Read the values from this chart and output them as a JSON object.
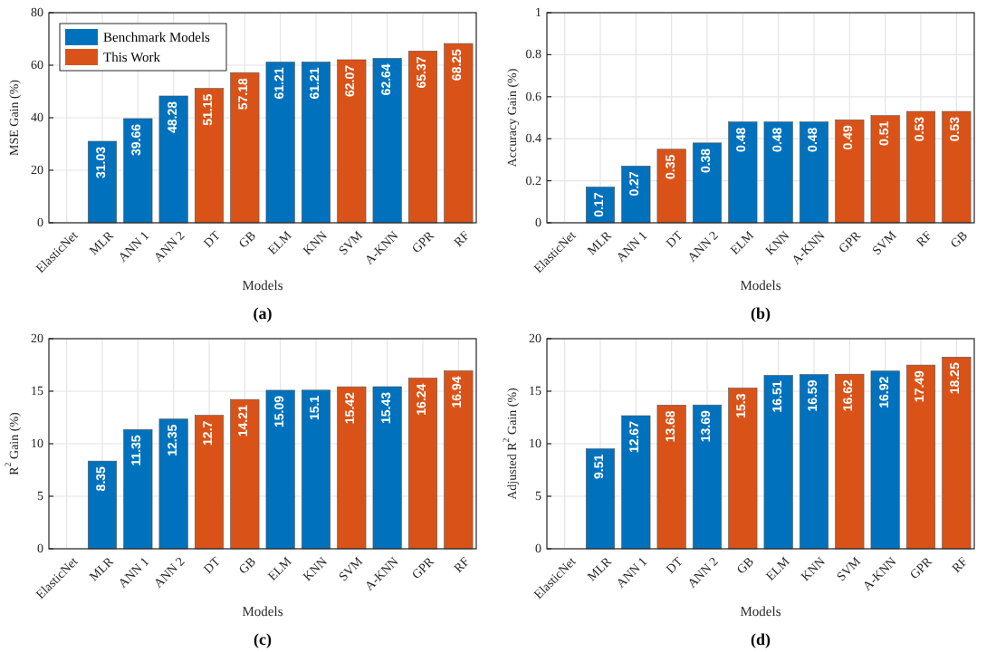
{
  "chart_data": [
    {
      "type": "bar",
      "title": "(a)",
      "xlabel": "Models",
      "ylabel": "MSE Gain (%)",
      "categories": [
        "ElasticNet",
        "MLR",
        "ANN 1",
        "ANN 2",
        "DT",
        "GB",
        "ELM",
        "KNN",
        "SVM",
        "A-KNN",
        "GPR",
        "RF"
      ],
      "stacked": true,
      "series": [
        {
          "name": "Benchmark Models",
          "color": "#0072bd",
          "values": [
            null,
            31.03,
            39.66,
            48.28,
            null,
            null,
            61.21,
            61.21,
            null,
            62.64,
            null,
            null
          ]
        },
        {
          "name": "This Work",
          "color": "#d95319",
          "values": [
            null,
            null,
            null,
            null,
            51.15,
            57.18,
            null,
            null,
            62.07,
            null,
            65.37,
            68.25
          ]
        }
      ],
      "ylim": [
        0,
        80
      ],
      "yticks": [
        0,
        20,
        40,
        60,
        80
      ],
      "grid": true,
      "legend": "top left",
      "data_labels": true
    },
    {
      "type": "bar",
      "title": "(b)",
      "xlabel": "Models",
      "ylabel": "Accuracy Gain (%)",
      "categories": [
        "ElasticNet",
        "MLR",
        "ANN 1",
        "DT",
        "ANN 2",
        "ELM",
        "KNN",
        "A-KNN",
        "GPR",
        "SVM",
        "RF",
        "GB"
      ],
      "stacked": true,
      "series": [
        {
          "color": "#0072bd",
          "values": [
            null,
            0.17,
            0.27,
            null,
            0.38,
            0.48,
            0.48,
            0.48,
            null,
            null,
            null,
            null
          ]
        },
        {
          "color": "#d95319",
          "values": [
            null,
            null,
            null,
            0.35,
            null,
            null,
            null,
            null,
            0.49,
            0.51,
            0.53,
            0.53
          ]
        }
      ],
      "ylim": [
        0,
        1
      ],
      "yticks": [
        0,
        0.2,
        0.4,
        0.6,
        0.8,
        1
      ],
      "grid": true,
      "data_labels": true
    },
    {
      "type": "bar",
      "title": "(c)",
      "xlabel": "Models",
      "ylabel": "R$^{2}$ Gain (%)",
      "categories": [
        "ElasticNet",
        "MLR",
        "ANN 1",
        "ANN 2",
        "DT",
        "GB",
        "ELM",
        "KNN",
        "SVM",
        "A-KNN",
        "GPR",
        "RF"
      ],
      "stacked": true,
      "series": [
        {
          "color": "#0072bd",
          "values": [
            null,
            8.35,
            11.35,
            12.35,
            null,
            null,
            15.09,
            15.1,
            null,
            15.43,
            null,
            null
          ]
        },
        {
          "color": "#d95319",
          "values": [
            null,
            null,
            null,
            null,
            12.7,
            14.21,
            null,
            null,
            15.42,
            null,
            16.24,
            16.94
          ]
        }
      ],
      "ylim": [
        0,
        20
      ],
      "yticks": [
        0,
        5,
        10,
        15,
        20
      ],
      "grid": true,
      "data_labels": true
    },
    {
      "type": "bar",
      "title": "(d)",
      "xlabel": "Models",
      "ylabel": "Adjusted R$^{2}$ Gain (%)",
      "categories": [
        "ElasticNet",
        "MLR",
        "ANN 1",
        "DT",
        "ANN 2",
        "GB",
        "ELM",
        "KNN",
        "SVM",
        "A-KNN",
        "GPR",
        "RF"
      ],
      "stacked": true,
      "series": [
        {
          "color": "#0072bd",
          "values": [
            null,
            9.51,
            12.67,
            null,
            13.69,
            null,
            16.51,
            16.59,
            null,
            16.92,
            null,
            null
          ]
        },
        {
          "color": "#d95319",
          "values": [
            null,
            null,
            null,
            13.68,
            null,
            15.3,
            null,
            null,
            16.62,
            null,
            17.49,
            18.25
          ]
        }
      ],
      "ylim": [
        0,
        20
      ],
      "yticks": [
        0,
        5,
        10,
        15,
        20
      ],
      "grid": true,
      "data_labels": true
    }
  ]
}
